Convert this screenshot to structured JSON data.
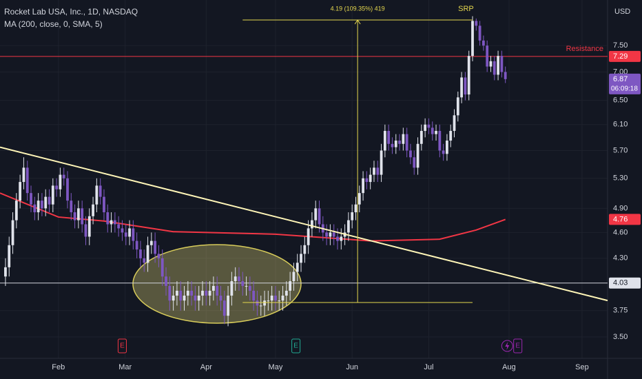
{
  "chart_data": {
    "type": "candlestick",
    "title": "Rocket Lab USA, Inc., 1D, NASDAQ",
    "currency": "USD",
    "log": true,
    "grid": true,
    "ylim": [
      3.31,
      8.45
    ],
    "yticks": [
      {
        "value": 7.5,
        "label": "7.50"
      },
      {
        "value": 7,
        "label": "7.00"
      },
      {
        "value": 6.5,
        "label": "6.50"
      },
      {
        "value": 6.1,
        "label": "6.10"
      },
      {
        "value": 5.7,
        "label": "5.70"
      },
      {
        "value": 5.3,
        "label": "5.30"
      },
      {
        "value": 4.9,
        "label": "4.90"
      },
      {
        "value": 4.6,
        "label": "4.60"
      },
      {
        "value": 4.3,
        "label": "4.30"
      },
      3.75,
      {
        "value": 3.5,
        "label": "3.50"
      }
    ],
    "xlim": [
      -1.5,
      165
    ],
    "xticks": [
      {
        "value": 14.5,
        "label": "Feb"
      },
      {
        "value": 32.8,
        "label": "Mar"
      },
      {
        "value": 55,
        "label": "Apr"
      },
      {
        "value": 74,
        "label": "May"
      },
      {
        "value": 95,
        "label": "Jun"
      },
      {
        "value": 116,
        "label": "Jul"
      },
      {
        "value": 138,
        "label": "Aug"
      },
      {
        "value": 158,
        "label": "Sep"
      }
    ],
    "up_color": "#e0e3eb",
    "down_color": "#7e57c2",
    "candles": [
      [
        4.1,
        4.3,
        4.0,
        4.2
      ],
      [
        4.2,
        4.55,
        4.1,
        4.45
      ],
      [
        4.45,
        4.85,
        4.35,
        4.75
      ],
      [
        4.75,
        5.1,
        4.65,
        5.0
      ],
      [
        5.0,
        5.35,
        4.9,
        5.25
      ],
      [
        5.25,
        5.6,
        5.15,
        5.45
      ],
      [
        5.45,
        5.55,
        5.0,
        5.1
      ],
      [
        5.1,
        5.2,
        4.85,
        4.95
      ],
      [
        4.95,
        5.05,
        4.75,
        4.85
      ],
      [
        4.85,
        5.1,
        4.75,
        5.0
      ],
      [
        5.0,
        5.1,
        4.8,
        4.9
      ],
      [
        4.9,
        5.15,
        4.8,
        5.05
      ],
      [
        5.05,
        5.15,
        4.85,
        4.95
      ],
      [
        4.95,
        5.3,
        4.85,
        5.2
      ],
      [
        5.2,
        5.3,
        5.05,
        5.15
      ],
      [
        5.15,
        5.45,
        5.05,
        5.35
      ],
      [
        5.35,
        5.45,
        5.2,
        5.3
      ],
      [
        5.3,
        5.4,
        4.9,
        5.0
      ],
      [
        5.0,
        5.1,
        4.75,
        4.85
      ],
      [
        4.85,
        4.95,
        4.65,
        4.75
      ],
      [
        4.75,
        5.0,
        4.65,
        4.9
      ],
      [
        4.9,
        5.0,
        4.6,
        4.7
      ],
      [
        4.7,
        4.8,
        4.45,
        4.55
      ],
      [
        4.55,
        4.9,
        4.45,
        4.8
      ],
      [
        4.8,
        5.05,
        4.7,
        4.95
      ],
      [
        4.95,
        5.3,
        4.85,
        5.2
      ],
      [
        5.2,
        5.3,
        4.95,
        5.05
      ],
      [
        5.05,
        5.15,
        4.75,
        4.85
      ],
      [
        4.85,
        4.95,
        4.6,
        4.7
      ],
      [
        4.7,
        4.85,
        4.6,
        4.75
      ],
      [
        4.75,
        4.85,
        4.6,
        4.7
      ],
      [
        4.7,
        4.8,
        4.55,
        4.65
      ],
      [
        4.65,
        4.75,
        4.5,
        4.6
      ],
      [
        4.6,
        4.7,
        4.45,
        4.55
      ],
      [
        4.55,
        4.75,
        4.45,
        4.65
      ],
      [
        4.65,
        4.75,
        4.4,
        4.5
      ],
      [
        4.5,
        4.6,
        4.3,
        4.4
      ],
      [
        4.4,
        4.5,
        4.2,
        4.3
      ],
      [
        4.3,
        4.4,
        4.15,
        4.25
      ],
      [
        4.25,
        4.55,
        4.15,
        4.45
      ],
      [
        4.45,
        4.6,
        4.35,
        4.5
      ],
      [
        4.5,
        4.6,
        4.25,
        4.35
      ],
      [
        4.35,
        4.45,
        4.2,
        4.3
      ],
      [
        4.3,
        4.4,
        4.0,
        4.1
      ],
      [
        4.1,
        4.2,
        3.9,
        4.0
      ],
      [
        4.0,
        4.1,
        3.75,
        3.85
      ],
      [
        3.85,
        4.0,
        3.75,
        3.9
      ],
      [
        3.9,
        4.05,
        3.8,
        3.95
      ],
      [
        3.95,
        4.05,
        3.75,
        3.85
      ],
      [
        3.85,
        4.0,
        3.75,
        3.9
      ],
      [
        3.9,
        4.05,
        3.8,
        3.95
      ],
      [
        3.95,
        4.05,
        3.8,
        3.9
      ],
      [
        3.9,
        4.0,
        3.75,
        3.85
      ],
      [
        3.85,
        4.0,
        3.75,
        3.9
      ],
      [
        3.9,
        4.05,
        3.8,
        3.95
      ],
      [
        3.95,
        4.05,
        3.8,
        3.9
      ],
      [
        3.9,
        4.05,
        3.8,
        3.95
      ],
      [
        3.95,
        4.1,
        3.85,
        4.0
      ],
      [
        4.0,
        4.1,
        3.8,
        3.9
      ],
      [
        3.9,
        4.0,
        3.75,
        3.85
      ],
      [
        3.85,
        3.95,
        3.62,
        3.7
      ],
      [
        3.7,
        4.0,
        3.6,
        3.9
      ],
      [
        3.9,
        4.15,
        3.8,
        4.05
      ],
      [
        4.05,
        4.2,
        3.95,
        4.1
      ],
      [
        4.1,
        4.2,
        3.95,
        4.05
      ],
      [
        4.05,
        4.15,
        3.9,
        4.0
      ],
      [
        4.0,
        4.1,
        3.9,
        4.0
      ],
      [
        4.0,
        4.1,
        3.85,
        3.95
      ],
      [
        3.95,
        4.05,
        3.75,
        3.85
      ],
      [
        3.85,
        3.95,
        3.7,
        3.8
      ],
      [
        3.8,
        3.9,
        3.7,
        3.8
      ],
      [
        3.8,
        3.95,
        3.7,
        3.85
      ],
      [
        3.85,
        3.95,
        3.75,
        3.85
      ],
      [
        3.85,
        4.0,
        3.75,
        3.9
      ],
      [
        3.9,
        4.0,
        3.75,
        3.85
      ],
      [
        3.85,
        3.95,
        3.75,
        3.85
      ],
      [
        3.85,
        4.0,
        3.75,
        3.9
      ],
      [
        3.9,
        4.05,
        3.8,
        3.95
      ],
      [
        3.95,
        4.15,
        3.85,
        4.05
      ],
      [
        4.05,
        4.25,
        3.95,
        4.15
      ],
      [
        4.15,
        4.35,
        4.05,
        4.25
      ],
      [
        4.25,
        4.45,
        4.15,
        4.35
      ],
      [
        4.35,
        4.55,
        4.25,
        4.45
      ],
      [
        4.45,
        4.75,
        4.35,
        4.65
      ],
      [
        4.65,
        4.85,
        4.55,
        4.75
      ],
      [
        4.75,
        5.0,
        4.65,
        4.9
      ],
      [
        4.9,
        5.0,
        4.6,
        4.7
      ],
      [
        4.7,
        4.8,
        4.5,
        4.6
      ],
      [
        4.6,
        4.7,
        4.45,
        4.55
      ],
      [
        4.55,
        4.7,
        4.45,
        4.6
      ],
      [
        4.6,
        4.7,
        4.45,
        4.55
      ],
      [
        4.55,
        4.65,
        4.4,
        4.5
      ],
      [
        4.5,
        4.65,
        4.4,
        4.55
      ],
      [
        4.55,
        4.7,
        4.45,
        4.6
      ],
      [
        4.6,
        4.85,
        4.5,
        4.75
      ],
      [
        4.75,
        4.95,
        4.65,
        4.85
      ],
      [
        4.85,
        5.05,
        4.75,
        4.95
      ],
      [
        4.95,
        5.2,
        4.85,
        5.1
      ],
      [
        5.1,
        5.4,
        5.0,
        5.3
      ],
      [
        5.3,
        5.4,
        5.15,
        5.25
      ],
      [
        5.25,
        5.45,
        5.15,
        5.35
      ],
      [
        5.35,
        5.55,
        5.25,
        5.45
      ],
      [
        5.45,
        5.55,
        5.25,
        5.35
      ],
      [
        5.35,
        5.8,
        5.25,
        5.7
      ],
      [
        5.7,
        6.1,
        5.6,
        6.0
      ],
      [
        6.0,
        6.1,
        5.7,
        5.8
      ],
      [
        5.8,
        5.9,
        5.65,
        5.75
      ],
      [
        5.75,
        5.95,
        5.65,
        5.85
      ],
      [
        5.85,
        5.95,
        5.7,
        5.8
      ],
      [
        5.8,
        6.05,
        5.7,
        5.95
      ],
      [
        5.95,
        6.05,
        5.6,
        5.7
      ],
      [
        5.7,
        5.8,
        5.5,
        5.6
      ],
      [
        5.6,
        5.7,
        5.35,
        5.45
      ],
      [
        5.45,
        5.9,
        5.35,
        5.8
      ],
      [
        5.8,
        6.1,
        5.7,
        6.0
      ],
      [
        6.0,
        6.2,
        5.9,
        6.1
      ],
      [
        6.1,
        6.2,
        5.95,
        6.05
      ],
      [
        6.05,
        6.15,
        5.85,
        5.95
      ],
      [
        5.95,
        6.1,
        5.85,
        6.0
      ],
      [
        6.0,
        6.1,
        5.6,
        5.7
      ],
      [
        5.7,
        5.8,
        5.55,
        5.65
      ],
      [
        5.65,
        5.95,
        5.55,
        5.85
      ],
      [
        5.85,
        6.1,
        5.75,
        6.0
      ],
      [
        6.0,
        6.35,
        5.9,
        6.25
      ],
      [
        6.25,
        6.65,
        6.15,
        6.55
      ],
      [
        6.55,
        7.0,
        6.45,
        6.9
      ],
      [
        6.9,
        7.0,
        6.5,
        6.6
      ],
      [
        6.6,
        7.4,
        6.5,
        7.3
      ],
      [
        7.3,
        8.1,
        7.2,
        8.0
      ],
      [
        8.0,
        8.05,
        7.8,
        7.9
      ],
      [
        7.9,
        8.0,
        7.5,
        7.6
      ],
      [
        7.6,
        7.7,
        7.4,
        7.5
      ],
      [
        7.5,
        7.6,
        7.0,
        7.1
      ],
      [
        7.1,
        7.3,
        7.0,
        7.2
      ],
      [
        7.2,
        7.3,
        6.85,
        6.95
      ],
      [
        6.95,
        7.4,
        6.85,
        7.3
      ],
      [
        7.3,
        7.4,
        6.9,
        7.0
      ],
      [
        7.0,
        7.1,
        6.8,
        6.87
      ]
    ],
    "ma": {
      "name": "MA (200, close, 0, SMA, 5)",
      "color": "#f23645",
      "x": [
        -1.5,
        14.5,
        27,
        46,
        74,
        100,
        119,
        129,
        137
      ],
      "values": [
        5.1,
        4.79,
        4.74,
        4.61,
        4.58,
        4.5,
        4.52,
        4.63,
        4.76
      ]
    },
    "trendline": {
      "color": "#fff6b8",
      "x": [
        -1.5,
        165
      ],
      "values": [
        5.75,
        3.85
      ]
    },
    "levels": [
      {
        "value": 7.29,
        "label": "Resistance",
        "color": "#f23645"
      },
      {
        "value": 4.03,
        "color": "#d1d4dc"
      }
    ],
    "price_tags": [
      {
        "value": 7.29,
        "color": "#f23645"
      },
      {
        "value": 6.87,
        "timer": "06:09:18",
        "color": "#7e57c2"
      },
      {
        "value": 4.76,
        "color": "#f23645"
      },
      {
        "value": 4.03,
        "color": "#e0e3eb"
      }
    ],
    "measure": {
      "label": "4.19 (109.35%) 419",
      "x": [
        65,
        128
      ],
      "from": 3.83,
      "to": 8.02,
      "color": "#e6d84e"
    },
    "srp": {
      "label": "SRP",
      "x": 126.2
    },
    "events": [
      {
        "x": 32,
        "label": "E",
        "color": "#f23645"
      },
      {
        "x": 79.6,
        "label": "E",
        "color": "#22ab94"
      },
      {
        "x": 140.4,
        "label": "E",
        "color": "#9c27b0"
      }
    ]
  }
}
